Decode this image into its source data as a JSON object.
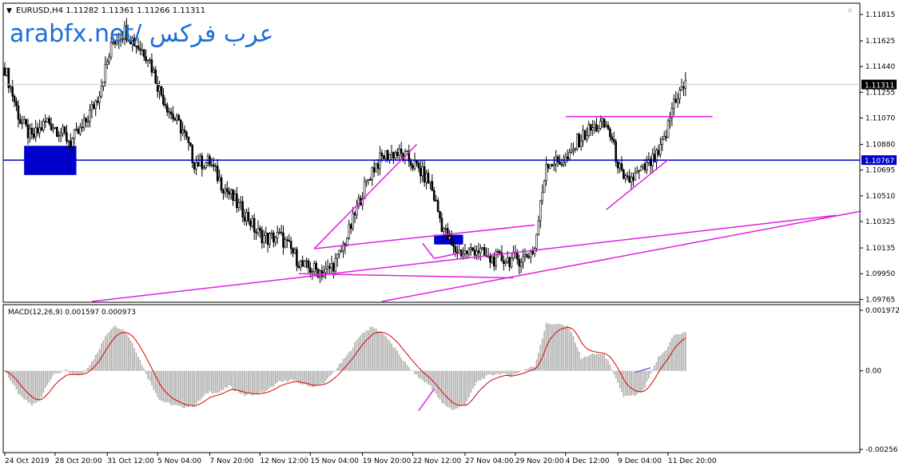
{
  "header": {
    "symbol_line": "EURUSD,H4  1.11282 1.11361 1.11266 1.11311",
    "watermark": "arabfx.net/ عرب فركس"
  },
  "indicator": {
    "label": "MACD(12,26,9) 0.001597 0.000973"
  },
  "colors": {
    "background": "#ffffff",
    "candle": "#000000",
    "horizontal_line": "#0000cc",
    "trendlines": "#e020e0",
    "zone_fill": "#0000cc",
    "macd_histogram": "#b4b4b4",
    "macd_signal": "#dd0000",
    "watermark": "#1e6fd6"
  },
  "price_labels": [
    "1.11815",
    "1.11625",
    "1.11440",
    "1.11255",
    "1.11070",
    "1.10880",
    "1.10695",
    "1.10510",
    "1.10325",
    "1.10135",
    "1.09950",
    "1.09765"
  ],
  "current_price_tag": "1.11311",
  "line_price_tag": "1.10767",
  "macd_labels": [
    "0.001972",
    "0.00",
    "-0.00256"
  ],
  "time_labels": [
    "24 Oct 2019",
    "28 Oct 20:00",
    "31 Oct 12:00",
    "5 Nov 04:00",
    "7 Nov 20:00",
    "12 Nov 12:00",
    "15 Nov 04:00",
    "19 Nov 20:00",
    "22 Nov 12:00",
    "27 Nov 04:00",
    "29 Nov 20:00",
    "4 Dec 12:00",
    "9 Dec 04:00",
    "11 Dec 20:00"
  ],
  "chart_data": {
    "type": "candlestick",
    "symbol": "EURUSD",
    "timeframe": "H4",
    "ylim": [
      1.0975,
      1.1189
    ],
    "current_price": 1.11311,
    "horizontal_line": 1.10767,
    "close_path": [
      [
        0,
        1.1143
      ],
      [
        8,
        1.1105
      ],
      [
        14,
        1.1092
      ],
      [
        22,
        1.1105
      ],
      [
        28,
        1.1098
      ],
      [
        34,
        1.109
      ],
      [
        40,
        1.1099
      ],
      [
        48,
        1.1122
      ],
      [
        56,
        1.1162
      ],
      [
        62,
        1.117
      ],
      [
        68,
        1.116
      ],
      [
        74,
        1.1152
      ],
      [
        80,
        1.1127
      ],
      [
        86,
        1.111
      ],
      [
        92,
        1.1098
      ],
      [
        98,
        1.1075
      ],
      [
        106,
        1.1075
      ],
      [
        112,
        1.106
      ],
      [
        120,
        1.1045
      ],
      [
        126,
        1.1035
      ],
      [
        130,
        1.1025
      ],
      [
        136,
        1.102
      ],
      [
        142,
        1.1022
      ],
      [
        148,
        1.1012
      ],
      [
        154,
        1.1
      ],
      [
        160,
        1.0998
      ],
      [
        166,
        1.0996
      ],
      [
        172,
        1.1005
      ],
      [
        178,
        1.1025
      ],
      [
        184,
        1.105
      ],
      [
        190,
        1.107
      ],
      [
        196,
        1.108
      ],
      [
        202,
        1.1082
      ],
      [
        208,
        1.1078
      ],
      [
        214,
        1.107
      ],
      [
        220,
        1.106
      ],
      [
        226,
        1.103
      ],
      [
        232,
        1.1012
      ],
      [
        238,
        1.101
      ],
      [
        244,
        1.1013
      ],
      [
        250,
        1.1005
      ],
      [
        256,
        1.1006
      ],
      [
        262,
        1.1005
      ],
      [
        268,
        1.1006
      ],
      [
        274,
        1.1013
      ],
      [
        280,
        1.1075
      ],
      [
        286,
        1.1075
      ],
      [
        292,
        1.1078
      ],
      [
        296,
        1.109
      ],
      [
        302,
        1.1098
      ],
      [
        308,
        1.1102
      ],
      [
        312,
        1.11
      ],
      [
        316,
        1.108
      ],
      [
        320,
        1.106
      ],
      [
        326,
        1.1065
      ],
      [
        332,
        1.1072
      ],
      [
        338,
        1.108
      ],
      [
        342,
        1.1095
      ],
      [
        346,
        1.112
      ],
      [
        352,
        1.1131
      ]
    ]
  },
  "macd_data": {
    "ylim": [
      -0.00256,
      0.001972
    ],
    "zero": 0.0
  }
}
